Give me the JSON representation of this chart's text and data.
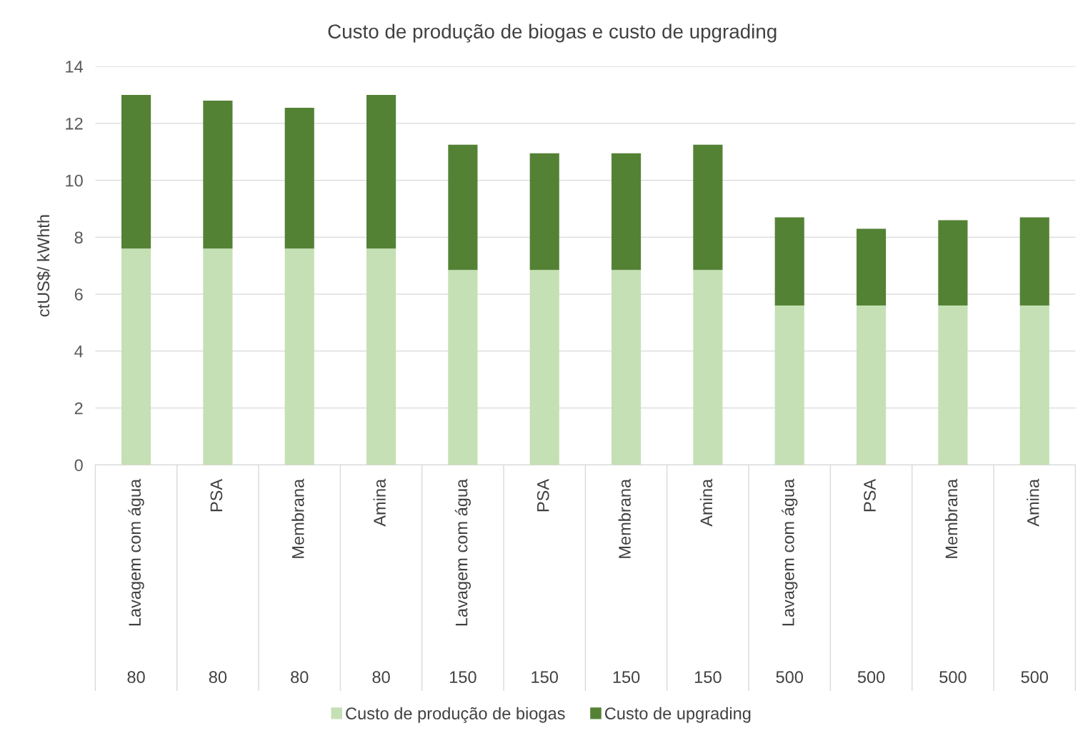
{
  "chart_data": {
    "type": "bar",
    "title": "Custo de produção de biogas e custo de upgrading",
    "ylabel": "ctUS$/ kWhth",
    "categories": [
      "Lavagem com água",
      "PSA",
      "Membrana",
      "Amina",
      "Lavagem com água",
      "PSA",
      "Membrana",
      "Amina",
      "Lavagem com água",
      "PSA",
      "Membrana",
      "Amina"
    ],
    "annotations": [
      "80",
      "80",
      "80",
      "80",
      "150",
      "150",
      "150",
      "150",
      "500",
      "500",
      "500",
      "500"
    ],
    "stacked": true,
    "series": [
      {
        "name": "Custo de produção de biogas",
        "color": "#c5e0b4",
        "values": [
          7.6,
          7.6,
          7.6,
          7.6,
          6.85,
          6.85,
          6.85,
          6.85,
          5.6,
          5.6,
          5.6,
          5.6
        ]
      },
      {
        "name": "Custo de upgrading",
        "color": "#548235",
        "values": [
          5.4,
          5.2,
          4.95,
          5.4,
          4.4,
          4.1,
          4.1,
          4.4,
          3.1,
          2.7,
          3.0,
          3.1
        ]
      }
    ],
    "ylim": [
      0,
      14
    ],
    "yticks": [
      0,
      2,
      4,
      6,
      8,
      10,
      12,
      14
    ],
    "grid": "y",
    "legend": "bottom"
  }
}
